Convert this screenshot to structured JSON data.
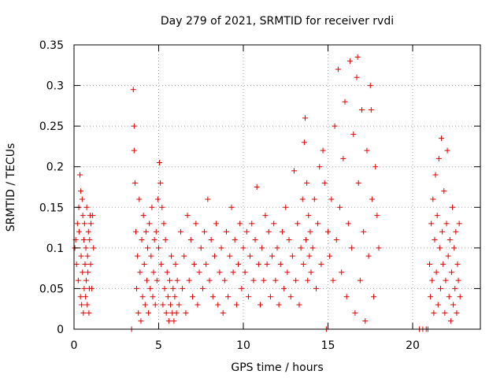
{
  "chart_data": {
    "type": "scatter",
    "title": "Day 279 of 2021, SRMTID for receiver rvdi",
    "xlabel": "GPS time / hours",
    "ylabel": "SRMTID / TECUs",
    "xlim": [
      0,
      24
    ],
    "ylim": [
      0,
      0.35
    ],
    "x_ticks": [
      0,
      5,
      10,
      15,
      20
    ],
    "y_ticks": [
      0,
      0.05,
      0.1,
      0.15,
      0.2,
      0.25,
      0.3,
      0.35
    ],
    "x_tick_labels": [
      "0",
      "5",
      "10",
      "15",
      "20"
    ],
    "y_tick_labels": [
      "0",
      "0.05",
      "0.1",
      "0.15",
      "0.2",
      "0.25",
      "0.3",
      "0.35"
    ],
    "grid": true,
    "marker": "+",
    "color": "#dd0000",
    "series": [
      {
        "name": "",
        "points": [
          [
            0.05,
            0.1
          ],
          [
            0.1,
            0.11
          ],
          [
            0.15,
            0.08
          ],
          [
            0.2,
            0.13
          ],
          [
            0.25,
            0.06
          ],
          [
            0.28,
            0.15
          ],
          [
            0.3,
            0.12
          ],
          [
            0.35,
            0.19
          ],
          [
            0.38,
            0.04
          ],
          [
            0.4,
            0.17
          ],
          [
            0.42,
            0.09
          ],
          [
            0.45,
            0.03
          ],
          [
            0.48,
            0.16
          ],
          [
            0.5,
            0.07
          ],
          [
            0.52,
            0.14
          ],
          [
            0.55,
            0.02
          ],
          [
            0.58,
            0.11
          ],
          [
            0.6,
            0.05
          ],
          [
            0.62,
            0.13
          ],
          [
            0.65,
            0.08
          ],
          [
            0.68,
            0.04
          ],
          [
            0.7,
            0.1
          ],
          [
            0.72,
            0.06
          ],
          [
            0.75,
            0.15
          ],
          [
            0.78,
            0.03
          ],
          [
            0.8,
            0.09
          ],
          [
            0.82,
            0.07
          ],
          [
            0.85,
            0.12
          ],
          [
            0.88,
            0.02
          ],
          [
            0.9,
            0.05
          ],
          [
            0.92,
            0.11
          ],
          [
            0.95,
            0.14
          ],
          [
            0.98,
            0.08
          ],
          [
            1.0,
            0.13
          ],
          [
            1.05,
            0.05
          ],
          [
            1.1,
            0.14
          ],
          [
            1.15,
            0.1
          ],
          [
            3.4,
            0.0
          ],
          [
            3.5,
            0.295
          ],
          [
            3.55,
            0.25
          ],
          [
            3.55,
            0.22
          ],
          [
            3.6,
            0.18
          ],
          [
            3.65,
            0.12
          ],
          [
            3.7,
            0.05
          ],
          [
            3.75,
            0.09
          ],
          [
            3.8,
            0.02
          ],
          [
            3.85,
            0.16
          ],
          [
            3.9,
            0.07
          ],
          [
            3.95,
            0.01
          ],
          [
            4.0,
            0.11
          ],
          [
            4.05,
            0.04
          ],
          [
            4.1,
            0.14
          ],
          [
            4.15,
            0.08
          ],
          [
            4.2,
            0.03
          ],
          [
            4.25,
            0.12
          ],
          [
            4.3,
            0.06
          ],
          [
            4.35,
            0.1
          ],
          [
            4.4,
            0.02
          ],
          [
            4.45,
            0.13
          ],
          [
            4.5,
            0.05
          ],
          [
            4.55,
            0.09
          ],
          [
            4.6,
            0.15
          ],
          [
            4.65,
            0.04
          ],
          [
            4.7,
            0.07
          ],
          [
            4.75,
            0.11
          ],
          [
            4.8,
            0.03
          ],
          [
            4.85,
            0.12
          ],
          [
            4.9,
            0.06
          ],
          [
            4.95,
            0.16
          ],
          [
            5.0,
            0.1
          ],
          [
            5.05,
            0.205
          ],
          [
            5.1,
            0.18
          ],
          [
            5.15,
            0.08
          ],
          [
            5.2,
            0.15
          ],
          [
            5.25,
            0.03
          ],
          [
            5.3,
            0.13
          ],
          [
            5.35,
            0.05
          ],
          [
            5.4,
            0.11
          ],
          [
            5.45,
            0.02
          ],
          [
            5.5,
            0.07
          ],
          [
            5.55,
            0.04
          ],
          [
            5.6,
            0.01
          ],
          [
            5.65,
            0.06
          ],
          [
            5.7,
            0.03
          ],
          [
            5.75,
            0.09
          ],
          [
            5.8,
            0.02
          ],
          [
            5.85,
            0.05
          ],
          [
            5.9,
            0.01
          ],
          [
            5.95,
            0.04
          ],
          [
            6.0,
            0.08
          ],
          [
            6.05,
            0.02
          ],
          [
            6.1,
            0.06
          ],
          [
            6.2,
            0.03
          ],
          [
            6.3,
            0.12
          ],
          [
            6.4,
            0.05
          ],
          [
            6.5,
            0.09
          ],
          [
            6.6,
            0.02
          ],
          [
            6.7,
            0.14
          ],
          [
            6.8,
            0.06
          ],
          [
            6.9,
            0.11
          ],
          [
            7.0,
            0.04
          ],
          [
            7.1,
            0.08
          ],
          [
            7.2,
            0.13
          ],
          [
            7.3,
            0.03
          ],
          [
            7.4,
            0.07
          ],
          [
            7.5,
            0.1
          ],
          [
            7.6,
            0.05
          ],
          [
            7.7,
            0.12
          ],
          [
            7.8,
            0.08
          ],
          [
            7.9,
            0.16
          ],
          [
            8.0,
            0.06
          ],
          [
            8.1,
            0.11
          ],
          [
            8.2,
            0.04
          ],
          [
            8.3,
            0.09
          ],
          [
            8.4,
            0.13
          ],
          [
            8.5,
            0.03
          ],
          [
            8.6,
            0.07
          ],
          [
            8.7,
            0.1
          ],
          [
            8.8,
            0.02
          ],
          [
            8.9,
            0.06
          ],
          [
            9.0,
            0.12
          ],
          [
            9.1,
            0.04
          ],
          [
            9.2,
            0.09
          ],
          [
            9.3,
            0.15
          ],
          [
            9.4,
            0.07
          ],
          [
            9.5,
            0.11
          ],
          [
            9.6,
            0.03
          ],
          [
            9.7,
            0.08
          ],
          [
            9.8,
            0.13
          ],
          [
            9.9,
            0.05
          ],
          [
            10.0,
            0.1
          ],
          [
            10.1,
            0.07
          ],
          [
            10.2,
            0.12
          ],
          [
            10.3,
            0.04
          ],
          [
            10.4,
            0.09
          ],
          [
            10.5,
            0.13
          ],
          [
            10.6,
            0.06
          ],
          [
            10.7,
            0.11
          ],
          [
            10.8,
            0.175
          ],
          [
            10.9,
            0.08
          ],
          [
            11.0,
            0.03
          ],
          [
            11.1,
            0.1
          ],
          [
            11.2,
            0.06
          ],
          [
            11.3,
            0.14
          ],
          [
            11.4,
            0.08
          ],
          [
            11.5,
            0.12
          ],
          [
            11.6,
            0.04
          ],
          [
            11.7,
            0.09
          ],
          [
            11.8,
            0.13
          ],
          [
            11.9,
            0.06
          ],
          [
            12.0,
            0.1
          ],
          [
            12.1,
            0.03
          ],
          [
            12.2,
            0.08
          ],
          [
            12.3,
            0.12
          ],
          [
            12.4,
            0.05
          ],
          [
            12.5,
            0.15
          ],
          [
            12.6,
            0.07
          ],
          [
            12.7,
            0.11
          ],
          [
            12.8,
            0.04
          ],
          [
            12.9,
            0.09
          ],
          [
            13.0,
            0.195
          ],
          [
            13.1,
            0.06
          ],
          [
            13.2,
            0.13
          ],
          [
            13.3,
            0.03
          ],
          [
            13.4,
            0.1
          ],
          [
            13.5,
            0.16
          ],
          [
            13.55,
            0.08
          ],
          [
            13.6,
            0.23
          ],
          [
            13.65,
            0.26
          ],
          [
            13.7,
            0.11
          ],
          [
            13.75,
            0.18
          ],
          [
            13.8,
            0.06
          ],
          [
            13.85,
            0.14
          ],
          [
            13.9,
            0.09
          ],
          [
            13.95,
            0.12
          ],
          [
            14.0,
            0.07
          ],
          [
            14.1,
            0.1
          ],
          [
            14.2,
            0.16
          ],
          [
            14.3,
            0.05
          ],
          [
            14.4,
            0.13
          ],
          [
            14.5,
            0.2
          ],
          [
            14.6,
            0.08
          ],
          [
            14.7,
            0.22
          ],
          [
            14.8,
            0.18
          ],
          [
            14.9,
            0.0
          ],
          [
            15.0,
            0.12
          ],
          [
            15.1,
            0.09
          ],
          [
            15.2,
            0.16
          ],
          [
            15.3,
            0.06
          ],
          [
            15.4,
            0.25
          ],
          [
            15.5,
            0.11
          ],
          [
            15.6,
            0.32
          ],
          [
            15.7,
            0.15
          ],
          [
            15.8,
            0.07
          ],
          [
            15.9,
            0.21
          ],
          [
            16.0,
            0.28
          ],
          [
            16.1,
            0.04
          ],
          [
            16.2,
            0.13
          ],
          [
            16.3,
            0.33
          ],
          [
            16.4,
            0.1
          ],
          [
            16.5,
            0.24
          ],
          [
            16.6,
            0.02
          ],
          [
            16.7,
            0.31
          ],
          [
            16.75,
            0.335
          ],
          [
            16.8,
            0.18
          ],
          [
            16.9,
            0.06
          ],
          [
            17.0,
            0.27
          ],
          [
            17.1,
            0.12
          ],
          [
            17.2,
            0.01
          ],
          [
            17.3,
            0.22
          ],
          [
            17.4,
            0.09
          ],
          [
            17.5,
            0.3
          ],
          [
            17.55,
            0.27
          ],
          [
            17.6,
            0.16
          ],
          [
            17.7,
            0.04
          ],
          [
            17.8,
            0.2
          ],
          [
            17.9,
            0.14
          ],
          [
            18.0,
            0.1
          ],
          [
            20.4,
            0.0
          ],
          [
            20.6,
            0.0
          ],
          [
            20.8,
            0.0
          ],
          [
            20.9,
            0.0
          ],
          [
            21.0,
            0.08
          ],
          [
            21.05,
            0.04
          ],
          [
            21.1,
            0.13
          ],
          [
            21.15,
            0.06
          ],
          [
            21.2,
            0.16
          ],
          [
            21.25,
            0.02
          ],
          [
            21.3,
            0.11
          ],
          [
            21.35,
            0.19
          ],
          [
            21.4,
            0.07
          ],
          [
            21.45,
            0.14
          ],
          [
            21.5,
            0.03
          ],
          [
            21.55,
            0.21
          ],
          [
            21.6,
            0.1
          ],
          [
            21.65,
            0.05
          ],
          [
            21.7,
            0.235
          ],
          [
            21.75,
            0.12
          ],
          [
            21.8,
            0.08
          ],
          [
            21.85,
            0.17
          ],
          [
            21.9,
            0.02
          ],
          [
            21.95,
            0.06
          ],
          [
            22.0,
            0.13
          ],
          [
            22.05,
            0.22
          ],
          [
            22.1,
            0.09
          ],
          [
            22.15,
            0.04
          ],
          [
            22.2,
            0.11
          ],
          [
            22.25,
            0.01
          ],
          [
            22.3,
            0.07
          ],
          [
            22.35,
            0.15
          ],
          [
            22.4,
            0.03
          ],
          [
            22.45,
            0.1
          ],
          [
            22.5,
            0.05
          ],
          [
            22.55,
            0.12
          ],
          [
            22.6,
            0.02
          ],
          [
            22.65,
            0.08
          ],
          [
            22.7,
            0.06
          ],
          [
            22.75,
            0.13
          ],
          [
            22.8,
            0.04
          ]
        ]
      }
    ]
  }
}
